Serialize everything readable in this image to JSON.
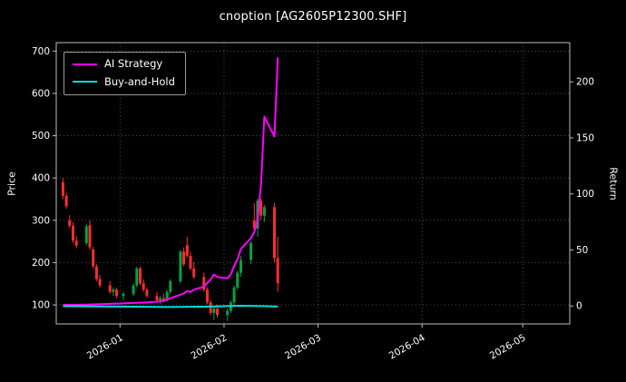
{
  "title": "cnoption [AG2605P12300.SHF]",
  "axes": {
    "left_label": "Price",
    "right_label": "Return"
  },
  "legend": [
    {
      "label": "AI Strategy",
      "color": "#ff00ff"
    },
    {
      "label": "Buy-and-Hold",
      "color": "#00dcdc"
    }
  ],
  "colors": {
    "background": "#000000",
    "text": "#ffffff",
    "grid": "#5a5a5a",
    "spine": "#bbbbbb"
  },
  "chart_data": {
    "type": "line+candlestick",
    "title": "cnoption [AG2605P12300.SHF]",
    "xlabel": "",
    "ylabel_left": "Price",
    "ylabel_right": "Return",
    "grid": "dotted",
    "legend_position": "upper-left",
    "x_range": [
      "2025-12-13",
      "2026-05-15"
    ],
    "x_ticks": [
      "2026-01",
      "2026-02",
      "2026-03",
      "2026-04",
      "2026-05"
    ],
    "price_ticks": [
      100,
      200,
      300,
      400,
      500,
      600,
      700
    ],
    "return_ticks": [
      0,
      50,
      100,
      150,
      200
    ],
    "price_lim": [
      55,
      720
    ],
    "return_lim": [
      -16,
      235
    ],
    "series": [
      {
        "name": "AI Strategy",
        "color": "#ff00ff",
        "axis": "price",
        "points": [
          [
            "2025-12-15",
            100
          ],
          [
            "2025-12-19",
            100
          ],
          [
            "2025-12-23",
            101
          ],
          [
            "2025-12-31",
            103
          ],
          [
            "2026-01-06",
            105
          ],
          [
            "2026-01-09",
            106
          ],
          [
            "2026-01-13",
            108
          ],
          [
            "2026-01-15",
            112
          ],
          [
            "2026-01-16",
            116
          ],
          [
            "2026-01-19",
            124
          ],
          [
            "2026-01-20",
            127
          ],
          [
            "2026-01-21",
            133
          ],
          [
            "2026-01-22",
            130
          ],
          [
            "2026-01-23",
            136
          ],
          [
            "2026-01-26",
            143
          ],
          [
            "2026-01-27",
            152
          ],
          [
            "2026-01-28",
            160
          ],
          [
            "2026-01-29",
            172
          ],
          [
            "2026-01-30",
            166
          ],
          [
            "2026-02-02",
            163
          ],
          [
            "2026-02-03",
            172
          ],
          [
            "2026-02-04",
            192
          ],
          [
            "2026-02-05",
            208
          ],
          [
            "2026-02-06",
            232
          ],
          [
            "2026-02-09",
            258
          ],
          [
            "2026-02-10",
            272
          ],
          [
            "2026-02-11",
            302
          ],
          [
            "2026-02-12",
            385
          ],
          [
            "2026-02-13",
            545
          ],
          [
            "2026-02-16",
            498
          ],
          [
            "2026-02-17",
            685
          ]
        ]
      },
      {
        "name": "Buy-and-Hold",
        "color": "#00dcdc",
        "axis": "price",
        "points": [
          [
            "2025-12-15",
            97
          ],
          [
            "2026-01-02",
            96
          ],
          [
            "2026-01-15",
            95
          ],
          [
            "2026-01-28",
            96
          ],
          [
            "2026-02-06",
            98
          ],
          [
            "2026-02-13",
            97
          ],
          [
            "2026-02-17",
            96
          ]
        ]
      }
    ],
    "candlesticks": {
      "up_color": "#00a244",
      "down_color": "#ff2e2e",
      "columns": [
        "date",
        "open",
        "high",
        "low",
        "close"
      ],
      "rows": [
        [
          "2025-12-15",
          390,
          400,
          350,
          358
        ],
        [
          "2025-12-16",
          358,
          365,
          328,
          333
        ],
        [
          "2025-12-17",
          300,
          312,
          282,
          287
        ],
        [
          "2025-12-18",
          287,
          296,
          246,
          252
        ],
        [
          "2025-12-19",
          252,
          262,
          234,
          240
        ],
        [
          "2025-12-22",
          246,
          292,
          240,
          286
        ],
        [
          "2025-12-23",
          288,
          300,
          230,
          236
        ],
        [
          "2025-12-24",
          231,
          237,
          186,
          191
        ],
        [
          "2025-12-25",
          191,
          196,
          156,
          161
        ],
        [
          "2025-12-26",
          161,
          171,
          141,
          146
        ],
        [
          "2025-12-29",
          146,
          156,
          126,
          131
        ],
        [
          "2025-12-30",
          131,
          141,
          121,
          136
        ],
        [
          "2025-12-31",
          136,
          141,
          116,
          121
        ],
        [
          "2026-01-02",
          121,
          131,
          111,
          126
        ],
        [
          "2026-01-05",
          126,
          151,
          121,
          146
        ],
        [
          "2026-01-06",
          146,
          191,
          141,
          186
        ],
        [
          "2026-01-07",
          186,
          191,
          146,
          151
        ],
        [
          "2026-01-08",
          151,
          161,
          131,
          136
        ],
        [
          "2026-01-09",
          136,
          141,
          116,
          121
        ],
        [
          "2026-01-12",
          121,
          131,
          106,
          111
        ],
        [
          "2026-01-13",
          111,
          121,
          101,
          116
        ],
        [
          "2026-01-14",
          116,
          126,
          106,
          111
        ],
        [
          "2026-01-15",
          111,
          136,
          108,
          131
        ],
        [
          "2026-01-16",
          131,
          161,
          126,
          156
        ],
        [
          "2026-01-19",
          156,
          231,
          151,
          226
        ],
        [
          "2026-01-20",
          226,
          236,
          191,
          196
        ],
        [
          "2026-01-21",
          241,
          261,
          211,
          216
        ],
        [
          "2026-01-22",
          216,
          226,
          181,
          186
        ],
        [
          "2026-01-23",
          186,
          201,
          161,
          166
        ],
        [
          "2026-01-26",
          166,
          176,
          131,
          136
        ],
        [
          "2026-01-27",
          136,
          141,
          101,
          106
        ],
        [
          "2026-01-28",
          106,
          111,
          76,
          81
        ],
        [
          "2026-01-29",
          81,
          96,
          64,
          91
        ],
        [
          "2026-01-30",
          91,
          101,
          70,
          76
        ],
        [
          "2026-02-02",
          76,
          91,
          62,
          86
        ],
        [
          "2026-02-03",
          86,
          111,
          81,
          106
        ],
        [
          "2026-02-04",
          106,
          146,
          96,
          141
        ],
        [
          "2026-02-05",
          141,
          181,
          136,
          176
        ],
        [
          "2026-02-06",
          176,
          216,
          166,
          206
        ],
        [
          "2026-02-09",
          206,
          251,
          196,
          246
        ],
        [
          "2026-02-10",
          300,
          341,
          271,
          281
        ],
        [
          "2026-02-11",
          281,
          351,
          261,
          346
        ],
        [
          "2026-02-12",
          346,
          351,
          301,
          311
        ],
        [
          "2026-02-13",
          311,
          336,
          296,
          331
        ],
        [
          "2026-02-16",
          331,
          341,
          201,
          211
        ],
        [
          "2026-02-17",
          211,
          261,
          131,
          151
        ]
      ]
    }
  }
}
